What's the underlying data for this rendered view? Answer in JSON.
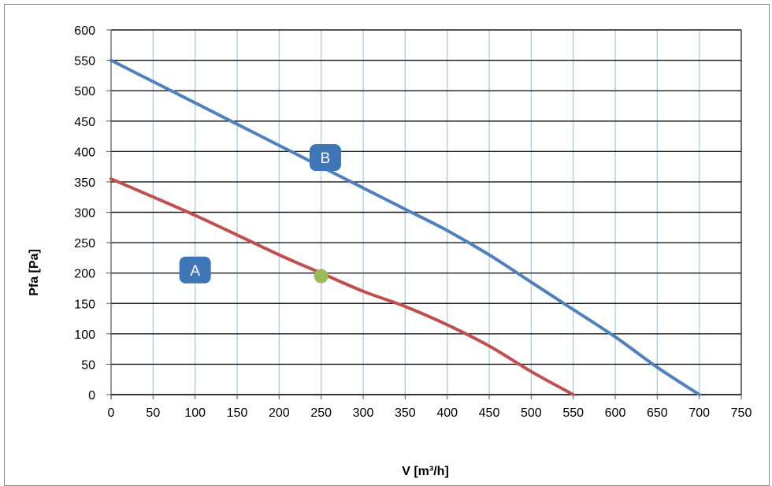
{
  "chart_data": {
    "type": "line",
    "title": "",
    "xlabel": "V [m³/h]",
    "ylabel": "Pfa [Pa]",
    "xlim": [
      0,
      750
    ],
    "ylim": [
      0,
      600
    ],
    "xticks": [
      0,
      50,
      100,
      150,
      200,
      250,
      300,
      350,
      400,
      450,
      500,
      550,
      600,
      650,
      700,
      750
    ],
    "yticks": [
      0,
      50,
      100,
      150,
      200,
      250,
      300,
      350,
      400,
      450,
      500,
      550,
      600
    ],
    "grid": true,
    "series": [
      {
        "name": "",
        "color": "#c0504d",
        "points": [
          [
            0,
            355
          ],
          [
            100,
            295
          ],
          [
            200,
            230
          ],
          [
            250,
            200
          ],
          [
            300,
            170
          ],
          [
            350,
            145
          ],
          [
            400,
            115
          ],
          [
            450,
            80
          ],
          [
            500,
            38
          ],
          [
            550,
            0
          ]
        ]
      },
      {
        "name": "",
        "color": "#4f81bd",
        "points": [
          [
            0,
            550
          ],
          [
            100,
            480
          ],
          [
            200,
            410
          ],
          [
            250,
            375
          ],
          [
            300,
            340
          ],
          [
            350,
            305
          ],
          [
            400,
            270
          ],
          [
            450,
            230
          ],
          [
            500,
            185
          ],
          [
            550,
            140
          ],
          [
            600,
            95
          ],
          [
            650,
            45
          ],
          [
            700,
            0
          ]
        ]
      }
    ],
    "marker": {
      "x": 250,
      "y": 195,
      "color": "#9bbb59"
    },
    "annotations": [
      {
        "text": "A",
        "x": 100,
        "y": 205
      },
      {
        "text": "B",
        "x": 255,
        "y": 390
      }
    ],
    "annotation_color": "#3e76b8"
  }
}
